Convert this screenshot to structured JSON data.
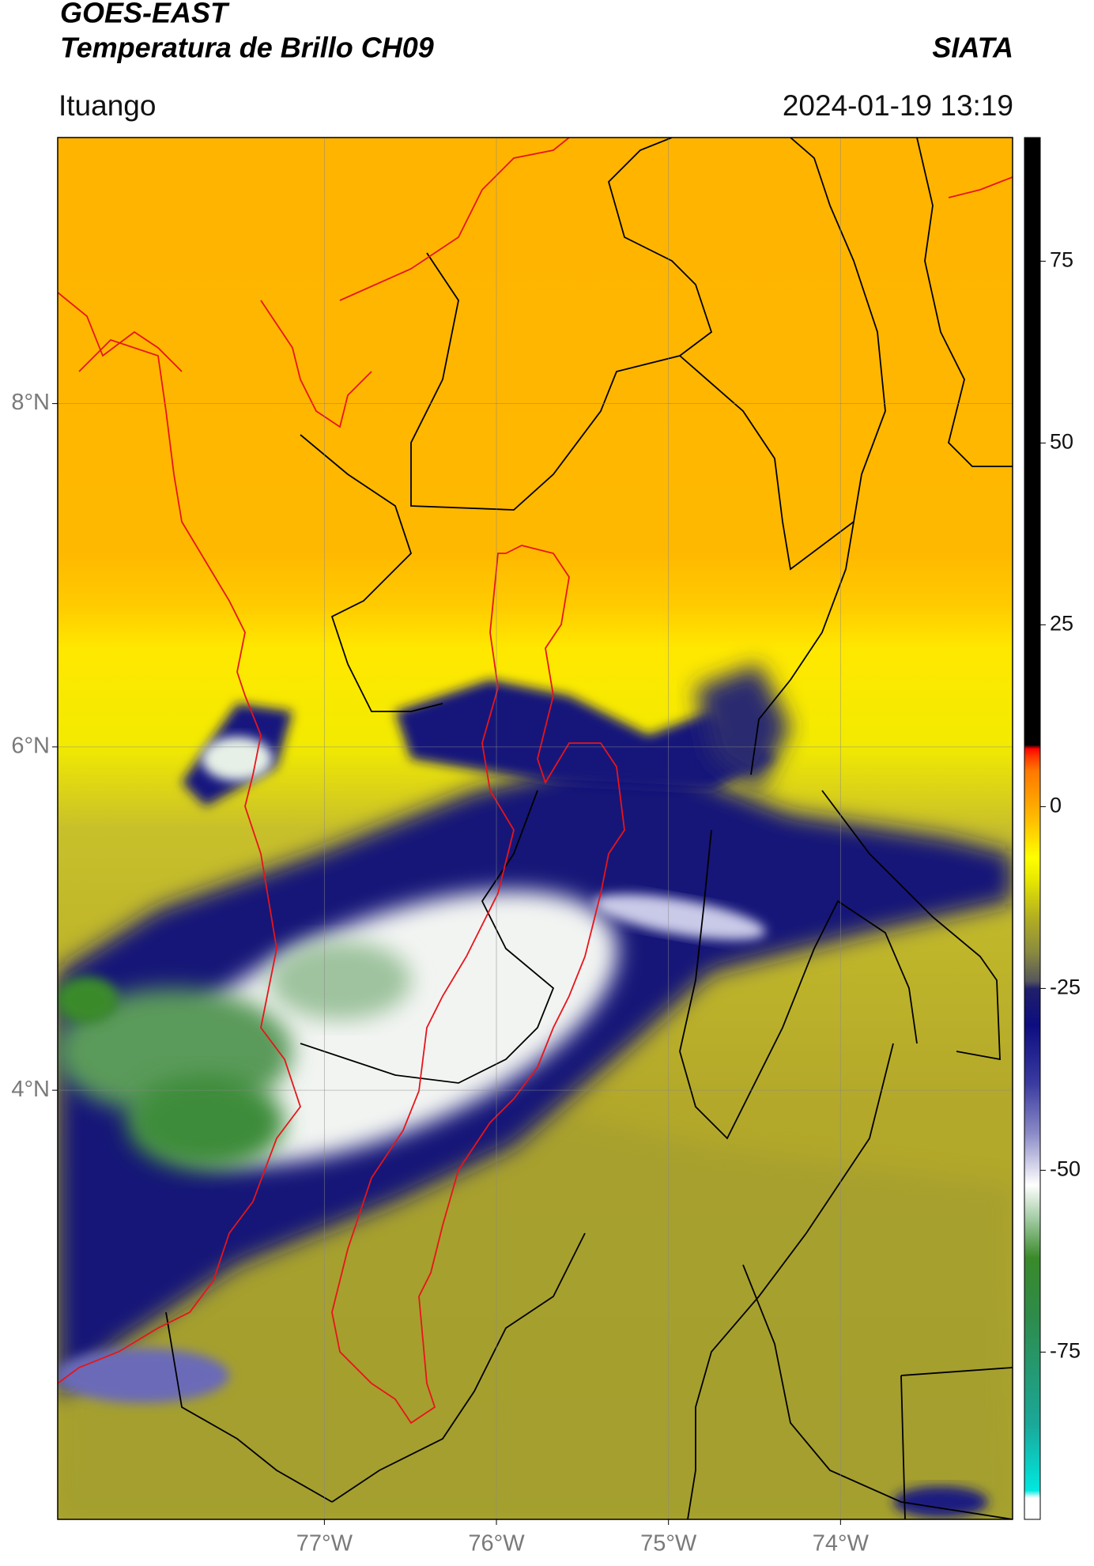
{
  "header": {
    "title": "GOES-EAST",
    "subtitle": "Temperatura de Brillo CH09",
    "credit": "SIATA",
    "location": "Ituango",
    "timestamp": "2024-01-19 13:19"
  },
  "chart_data": {
    "type": "map",
    "xlim": [
      -78.55,
      -73.0
    ],
    "ylim": [
      1.5,
      9.55
    ],
    "xticks": [
      {
        "value": -77,
        "label": "77°W"
      },
      {
        "value": -76,
        "label": "76°W"
      },
      {
        "value": -75,
        "label": "75°W"
      },
      {
        "value": -74,
        "label": "74°W"
      }
    ],
    "yticks": [
      {
        "value": 4,
        "label": "4°N"
      },
      {
        "value": 6,
        "label": "6°N"
      },
      {
        "value": 8,
        "label": "8°N"
      }
    ],
    "grid": true,
    "colorbar": {
      "clim": [
        -98,
        92
      ],
      "ticks": [
        -75,
        -50,
        -25,
        0,
        25,
        50,
        75
      ],
      "stops": [
        {
          "value": -98,
          "color": "#ffffff"
        },
        {
          "value": -95,
          "color": "#ffffff"
        },
        {
          "value": -94,
          "color": "#00e8e0"
        },
        {
          "value": -85,
          "color": "#1aa89a"
        },
        {
          "value": -70,
          "color": "#2e8b4a"
        },
        {
          "value": -62,
          "color": "#3a8a2a"
        },
        {
          "value": -57,
          "color": "#9cc79c"
        },
        {
          "value": -52,
          "color": "#ffffff"
        },
        {
          "value": -45,
          "color": "#8c8cc8"
        },
        {
          "value": -38,
          "color": "#3a3aa0"
        },
        {
          "value": -30,
          "color": "#0d0d80"
        },
        {
          "value": -25,
          "color": "#20206a"
        },
        {
          "value": -24,
          "color": "#55555c"
        },
        {
          "value": -20,
          "color": "#8a8a40"
        },
        {
          "value": -15,
          "color": "#b5b020"
        },
        {
          "value": -10,
          "color": "#e8e800"
        },
        {
          "value": -7,
          "color": "#ffff00"
        },
        {
          "value": -3,
          "color": "#ffcc00"
        },
        {
          "value": 0,
          "color": "#ffaa00"
        },
        {
          "value": 5,
          "color": "#ff7700"
        },
        {
          "value": 7,
          "color": "#ff3300"
        },
        {
          "value": 8,
          "color": "#ff0000"
        },
        {
          "value": 8.5,
          "color": "#000000"
        },
        {
          "value": 92,
          "color": "#000000"
        }
      ]
    }
  }
}
